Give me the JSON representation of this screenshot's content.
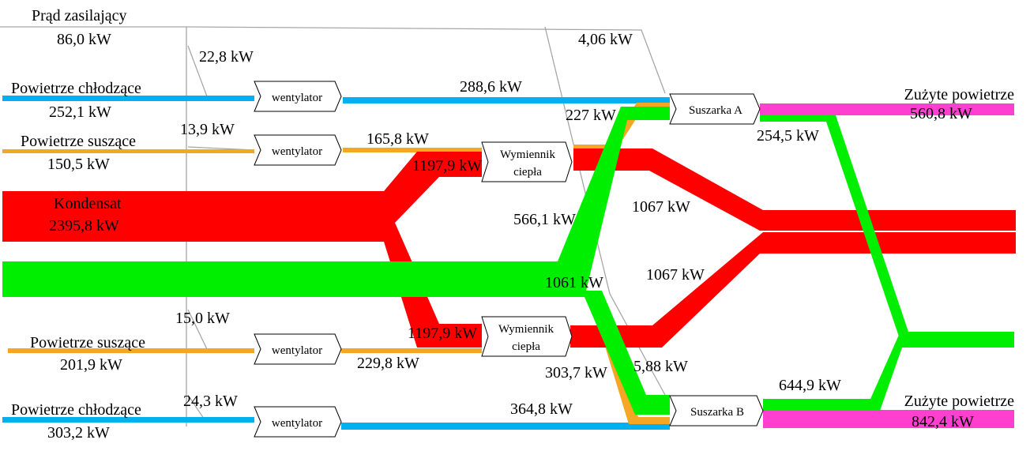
{
  "colors": {
    "electricity": "#a6a6a6",
    "cooling_air": "#00b0f0",
    "drying_air": "#f5a623",
    "condensate": "#ff0000",
    "green_flow": "#00ee00",
    "exhaust_air": "#ff3fcf"
  },
  "labels": {
    "prad_title": "Prąd zasilający",
    "prad_value": "86,0 kW",
    "prad_branch_1": "22,8 kW",
    "prad_branch_2": "13,9 kW",
    "prad_branch_3": "15,0 kW",
    "prad_branch_4": "24,3 kW",
    "prad_dryer_a": "4,06 kW",
    "prad_dryer_b": "5,88 kW",
    "cool1_title": "Powietrze chłodzące",
    "cool1_value": "252,1 kW",
    "dry1_title": "Powietrze suszące",
    "dry1_value": "150,5 kW",
    "kondensat_title": "Kondensat",
    "kondensat_value": "2395,8 kW",
    "dry2_title": "Powietrze suszące",
    "dry2_value": "201,9 kW",
    "cool2_title": "Powietrze chłodzące",
    "cool2_value": "303,2 kW",
    "cool1_out": "288,6 kW",
    "dry1_out": "165,8 kW",
    "hx1_in": "1197,9 kW",
    "hx2_in": "1197,9 kW",
    "dry2_out": "229,8 kW",
    "cool2_out": "364,8 kW",
    "hx1_air_out": "227 kW",
    "green_a": "566,1 kW",
    "green_main": "1061 kW",
    "hx2_air_out": "303,7 kW",
    "cond_up": "1067 kW",
    "cond_down": "1067 kW",
    "dryer_a_green": "254,5 kW",
    "dryer_b_green": "644,9 kW",
    "exhaust_top_title": "Zużyte powietrze",
    "exhaust_top_value": "560,8 kW",
    "exhaust_bottom_title": "Zużyte powietrze",
    "exhaust_bottom_value": "842,4 kW"
  },
  "nodes": {
    "fan1": "wentylator",
    "fan2": "wentylator",
    "fan3": "wentylator",
    "fan4": "wentylator",
    "hx1_line1": "Wymiennik",
    "hx1_line2": "ciepła",
    "hx2_line1": "Wymiennik",
    "hx2_line2": "ciepła",
    "dryer_a": "Suszarka A",
    "dryer_b": "Suszarka B"
  }
}
